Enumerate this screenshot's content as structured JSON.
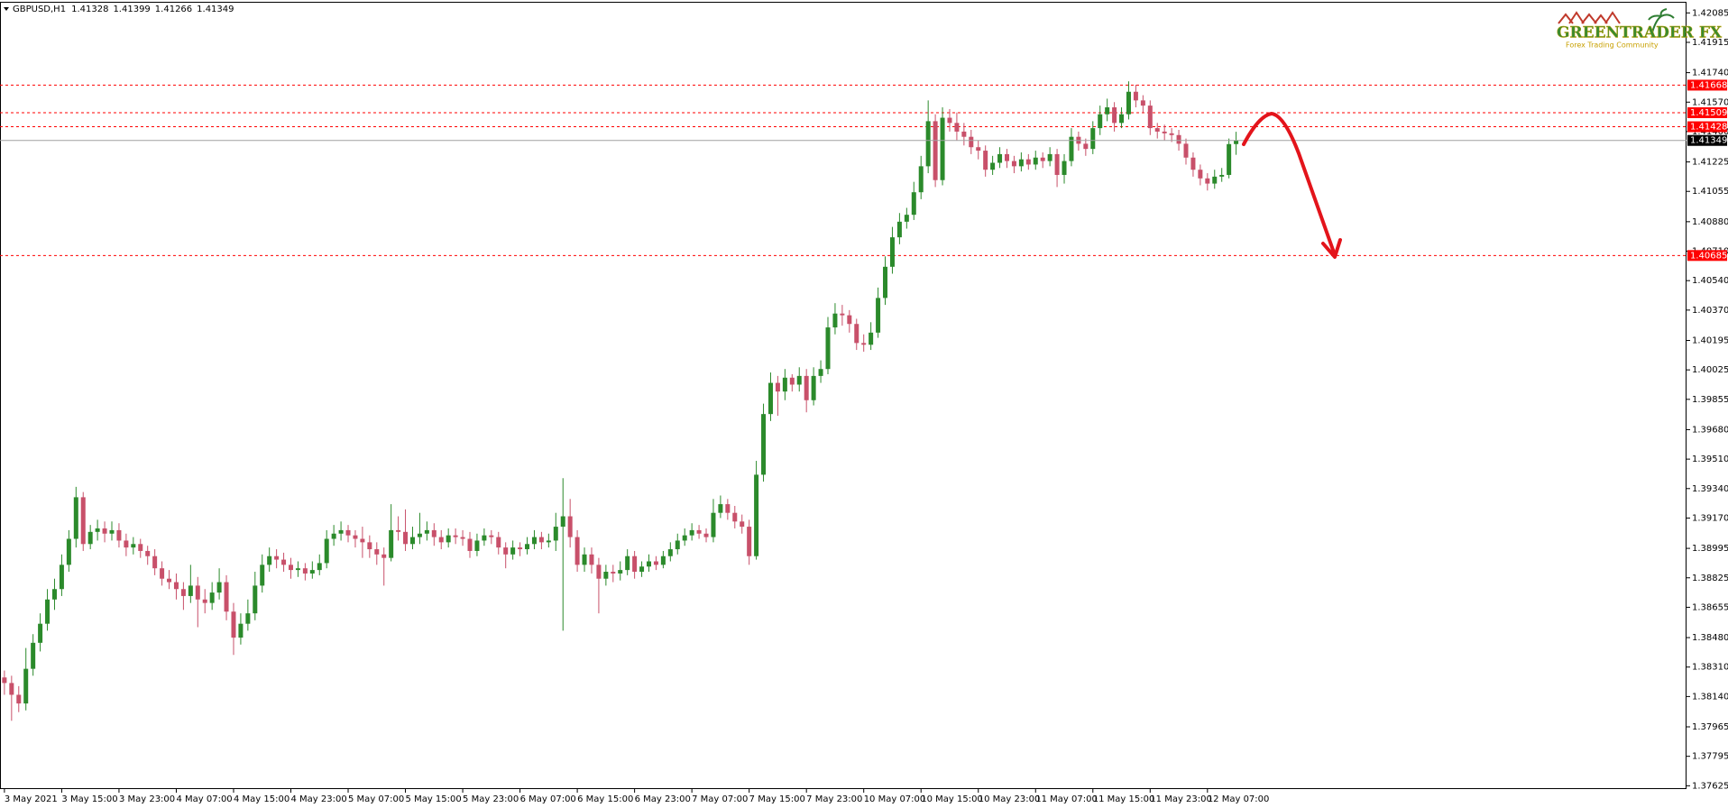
{
  "symbol": "GBPUSD,H1",
  "logo": {
    "title": "GREENTRADER FX",
    "subtitle": "Forex Trading Community"
  },
  "chart_data": {
    "type": "candlestick",
    "up_color": "#2b8a2b",
    "down_color": "#c8506a",
    "level_color": "#ff0000",
    "current_color": "#000000",
    "levels": [
      1.41668,
      1.41509,
      1.41428,
      1.40685
    ],
    "ylim": [
      1.37606,
      1.42149
    ],
    "yticks": [
      1.42085,
      1.41915,
      {
        "value": 1.4174,
        "label": "1.41740"
      },
      {
        "value": 1.4157,
        "label": "1.41570"
      },
      {
        "value": 1.414,
        "label": "1.41400"
      },
      1.41225,
      1.41055,
      {
        "value": 1.4088,
        "label": "1.40880"
      },
      {
        "value": 1.4071,
        "label": "1.40710"
      },
      {
        "value": 1.4054,
        "label": "1.40540"
      },
      {
        "value": 1.4037,
        "label": "1.40370"
      },
      1.40195,
      1.40025,
      1.39855,
      {
        "value": 1.3968,
        "label": "1.39680"
      },
      {
        "value": 1.3951,
        "label": "1.39510"
      },
      {
        "value": 1.3934,
        "label": "1.39340"
      },
      {
        "value": 1.3917,
        "label": "1.39170"
      },
      1.38995,
      1.38825,
      1.38655,
      {
        "value": 1.3848,
        "label": "1.38480"
      },
      {
        "value": 1.3831,
        "label": "1.38310"
      },
      {
        "value": 1.3814,
        "label": "1.38140"
      },
      1.37965,
      1.37795,
      1.37625
    ],
    "xticks": [
      {
        "value": 0,
        "label": "3 May 2021"
      },
      {
        "value": 8,
        "label": "3 May 15:00"
      },
      {
        "value": 16,
        "label": "3 May 23:00"
      },
      {
        "value": 24,
        "label": "4 May 07:00"
      },
      {
        "value": 32,
        "label": "4 May 15:00"
      },
      {
        "value": 40,
        "label": "4 May 23:00"
      },
      {
        "value": 48,
        "label": "5 May 07:00"
      },
      {
        "value": 56,
        "label": "5 May 15:00"
      },
      {
        "value": 64,
        "label": "5 May 23:00"
      },
      {
        "value": 72,
        "label": "6 May 07:00"
      },
      {
        "value": 80,
        "label": "6 May 15:00"
      },
      {
        "value": 88,
        "label": "6 May 23:00"
      },
      {
        "value": 96,
        "label": "7 May 07:00"
      },
      {
        "value": 104,
        "label": "7 May 15:00"
      },
      {
        "value": 112,
        "label": "7 May 23:00"
      },
      {
        "value": 120,
        "label": "10 May 07:00"
      },
      {
        "value": 128,
        "label": "10 May 15:00"
      },
      {
        "value": 136,
        "label": "10 May 23:00"
      },
      {
        "value": 144,
        "label": "11 May 07:00"
      },
      {
        "value": 152,
        "label": "11 May 15:00"
      },
      {
        "value": 160,
        "label": "11 May 23:00"
      },
      {
        "value": 168,
        "label": "12 May 07:00"
      }
    ],
    "ohlc": [
      [
        1.3825,
        1.3829,
        1.3815,
        1.38218
      ],
      [
        1.38218,
        1.3826,
        1.38,
        1.3815
      ],
      [
        1.3815,
        1.382,
        1.3805,
        1.381
      ],
      [
        1.381,
        1.3842,
        1.3806,
        1.383
      ],
      [
        1.383,
        1.385,
        1.3826,
        1.3845
      ],
      [
        1.3845,
        1.3862,
        1.384,
        1.3856
      ],
      [
        1.3856,
        1.3876,
        1.3852,
        1.387
      ],
      [
        1.387,
        1.3882,
        1.3864,
        1.3876
      ],
      [
        1.3876,
        1.3896,
        1.3872,
        1.389
      ],
      [
        1.389,
        1.391,
        1.3886,
        1.3905
      ],
      [
        1.3905,
        1.3935,
        1.39,
        1.3929
      ],
      [
        1.3929,
        1.3932,
        1.3898,
        1.3902
      ],
      [
        1.3902,
        1.3913,
        1.3899,
        1.3909
      ],
      [
        1.3909,
        1.3916,
        1.3904,
        1.3911
      ],
      [
        1.3911,
        1.3915,
        1.3903,
        1.3908
      ],
      [
        1.3908,
        1.3915,
        1.3904,
        1.391
      ],
      [
        1.391,
        1.3914,
        1.39,
        1.3904
      ],
      [
        1.3904,
        1.3908,
        1.3895,
        1.39
      ],
      [
        1.39,
        1.3906,
        1.3896,
        1.3902
      ],
      [
        1.3902,
        1.3905,
        1.3894,
        1.3898
      ],
      [
        1.3898,
        1.3901,
        1.389,
        1.3895
      ],
      [
        1.3895,
        1.3899,
        1.3884,
        1.3888
      ],
      [
        1.3888,
        1.3892,
        1.3878,
        1.3882
      ],
      [
        1.3882,
        1.3887,
        1.3876,
        1.388
      ],
      [
        1.388,
        1.3885,
        1.387,
        1.3876
      ],
      [
        1.3876,
        1.388,
        1.3864,
        1.3872
      ],
      [
        1.3872,
        1.389,
        1.3868,
        1.3878
      ],
      [
        1.3878,
        1.3883,
        1.3854,
        1.387
      ],
      [
        1.387,
        1.3876,
        1.3862,
        1.3868
      ],
      [
        1.3868,
        1.388,
        1.3864,
        1.3874
      ],
      [
        1.3874,
        1.3888,
        1.387,
        1.388
      ],
      [
        1.388,
        1.3884,
        1.3858,
        1.3863
      ],
      [
        1.3863,
        1.3868,
        1.3838,
        1.3848
      ],
      [
        1.3848,
        1.3862,
        1.3844,
        1.3856
      ],
      [
        1.3856,
        1.387,
        1.3852,
        1.3862
      ],
      [
        1.3862,
        1.3886,
        1.3858,
        1.3878
      ],
      [
        1.3878,
        1.3896,
        1.3874,
        1.389
      ],
      [
        1.389,
        1.39,
        1.3886,
        1.3895
      ],
      [
        1.3895,
        1.3899,
        1.3888,
        1.3893
      ],
      [
        1.3893,
        1.3897,
        1.3886,
        1.389
      ],
      [
        1.389,
        1.3894,
        1.3882,
        1.3887
      ],
      [
        1.3887,
        1.3892,
        1.3883,
        1.3888
      ],
      [
        1.3888,
        1.3891,
        1.3881,
        1.3885
      ],
      [
        1.3885,
        1.3892,
        1.3882,
        1.3887
      ],
      [
        1.3887,
        1.3896,
        1.3884,
        1.3891
      ],
      [
        1.3891,
        1.391,
        1.3888,
        1.3905
      ],
      [
        1.3905,
        1.3913,
        1.3901,
        1.3908
      ],
      [
        1.3908,
        1.3915,
        1.3904,
        1.391
      ],
      [
        1.391,
        1.3913,
        1.3903,
        1.3907
      ],
      [
        1.3907,
        1.391,
        1.39,
        1.3905
      ],
      [
        1.3905,
        1.3912,
        1.3894,
        1.3903
      ],
      [
        1.3903,
        1.3907,
        1.3894,
        1.3899
      ],
      [
        1.3899,
        1.3903,
        1.389,
        1.3896
      ],
      [
        1.3896,
        1.39,
        1.3878,
        1.3894
      ],
      [
        1.3894,
        1.3925,
        1.3892,
        1.391
      ],
      [
        1.391,
        1.3918,
        1.3904,
        1.3909
      ],
      [
        1.3909,
        1.3922,
        1.3898,
        1.3902
      ],
      [
        1.3902,
        1.3912,
        1.3899,
        1.3906
      ],
      [
        1.3906,
        1.392,
        1.3902,
        1.3908
      ],
      [
        1.3908,
        1.3915,
        1.3904,
        1.391
      ],
      [
        1.391,
        1.3914,
        1.3901,
        1.3906
      ],
      [
        1.3906,
        1.391,
        1.3899,
        1.3903
      ],
      [
        1.3903,
        1.3911,
        1.39,
        1.3907
      ],
      [
        1.3907,
        1.3911,
        1.3902,
        1.3906
      ],
      [
        1.3906,
        1.391,
        1.3901,
        1.3905
      ],
      [
        1.3905,
        1.3909,
        1.3894,
        1.3898
      ],
      [
        1.3898,
        1.3908,
        1.3895,
        1.3904
      ],
      [
        1.3904,
        1.3911,
        1.3901,
        1.3907
      ],
      [
        1.3907,
        1.391,
        1.3902,
        1.3906
      ],
      [
        1.3906,
        1.3909,
        1.3896,
        1.39
      ],
      [
        1.39,
        1.3903,
        1.3888,
        1.3896
      ],
      [
        1.3896,
        1.3904,
        1.3893,
        1.39
      ],
      [
        1.39,
        1.3903,
        1.3895,
        1.3899
      ],
      [
        1.3899,
        1.3906,
        1.3896,
        1.3902
      ],
      [
        1.3902,
        1.391,
        1.3899,
        1.3906
      ],
      [
        1.3906,
        1.3909,
        1.3899,
        1.3903
      ],
      [
        1.3903,
        1.3908,
        1.39,
        1.3904
      ],
      [
        1.3904,
        1.392,
        1.3898,
        1.3912
      ],
      [
        1.3912,
        1.394,
        1.3852,
        1.3918
      ],
      [
        1.3918,
        1.3928,
        1.39,
        1.3906
      ],
      [
        1.3906,
        1.391,
        1.3886,
        1.389
      ],
      [
        1.389,
        1.39,
        1.3886,
        1.3896
      ],
      [
        1.3896,
        1.39,
        1.3885,
        1.389
      ],
      [
        1.389,
        1.3894,
        1.3862,
        1.3882
      ],
      [
        1.3882,
        1.389,
        1.3878,
        1.3886
      ],
      [
        1.3886,
        1.389,
        1.388,
        1.3885
      ],
      [
        1.3885,
        1.3892,
        1.3881,
        1.3887
      ],
      [
        1.3887,
        1.3899,
        1.3884,
        1.3895
      ],
      [
        1.3895,
        1.3898,
        1.3882,
        1.3886
      ],
      [
        1.3886,
        1.3892,
        1.3883,
        1.3889
      ],
      [
        1.3889,
        1.3896,
        1.3886,
        1.3892
      ],
      [
        1.3892,
        1.3895,
        1.3887,
        1.389
      ],
      [
        1.389,
        1.3898,
        1.3888,
        1.3895
      ],
      [
        1.3895,
        1.3903,
        1.3892,
        1.3899
      ],
      [
        1.3899,
        1.3908,
        1.3896,
        1.3904
      ],
      [
        1.3904,
        1.3911,
        1.3901,
        1.3907
      ],
      [
        1.3907,
        1.3914,
        1.3904,
        1.391
      ],
      [
        1.391,
        1.3913,
        1.3905,
        1.3908
      ],
      [
        1.3908,
        1.3911,
        1.3903,
        1.3906
      ],
      [
        1.3906,
        1.3928,
        1.3903,
        1.392
      ],
      [
        1.392,
        1.393,
        1.3917,
        1.3925
      ],
      [
        1.3925,
        1.3928,
        1.3916,
        1.392
      ],
      [
        1.392,
        1.3924,
        1.3911,
        1.3915
      ],
      [
        1.3915,
        1.3919,
        1.3908,
        1.3912
      ],
      [
        1.3912,
        1.3916,
        1.389,
        1.3895
      ],
      [
        1.3895,
        1.395,
        1.3893,
        1.3942
      ],
      [
        1.3942,
        1.3983,
        1.3938,
        1.3977
      ],
      [
        1.3977,
        1.4001,
        1.3973,
        1.3995
      ],
      [
        1.3995,
        1.3999,
        1.3976,
        1.399
      ],
      [
        1.399,
        1.4003,
        1.3985,
        1.3998
      ],
      [
        1.3998,
        1.4,
        1.399,
        1.3994
      ],
      [
        1.3994,
        1.4004,
        1.399,
        1.3999
      ],
      [
        1.3999,
        1.4003,
        1.3978,
        1.3985
      ],
      [
        1.3985,
        1.4004,
        1.3982,
        1.3999
      ],
      [
        1.3999,
        1.4008,
        1.3995,
        1.4003
      ],
      [
        1.4003,
        1.4033,
        1.4,
        1.4027
      ],
      [
        1.4027,
        1.4041,
        1.4023,
        1.4035
      ],
      [
        1.4035,
        1.404,
        1.4028,
        1.4034
      ],
      [
        1.4034,
        1.4037,
        1.4024,
        1.4029
      ],
      [
        1.4029,
        1.4032,
        1.4014,
        1.4018
      ],
      [
        1.4018,
        1.4023,
        1.4013,
        1.4017
      ],
      [
        1.4017,
        1.403,
        1.4014,
        1.4024
      ],
      [
        1.4024,
        1.405,
        1.4021,
        1.4044
      ],
      [
        1.4044,
        1.4068,
        1.404,
        1.4062
      ],
      [
        1.4062,
        1.4085,
        1.4058,
        1.4079
      ],
      [
        1.4079,
        1.4093,
        1.4075,
        1.4088
      ],
      [
        1.4088,
        1.4096,
        1.4084,
        1.4092
      ],
      [
        1.4092,
        1.4111,
        1.4089,
        1.4105
      ],
      [
        1.4105,
        1.4126,
        1.4101,
        1.412
      ],
      [
        1.412,
        1.4158,
        1.4116,
        1.4146
      ],
      [
        1.4146,
        1.415,
        1.4108,
        1.4112
      ],
      [
        1.4112,
        1.4154,
        1.4109,
        1.4148
      ],
      [
        1.4148,
        1.4153,
        1.414,
        1.4145
      ],
      [
        1.4145,
        1.4151,
        1.4135,
        1.414
      ],
      [
        1.414,
        1.4145,
        1.4132,
        1.4137
      ],
      [
        1.4137,
        1.4141,
        1.4127,
        1.4131
      ],
      [
        1.4131,
        1.4135,
        1.4124,
        1.4129
      ],
      [
        1.4129,
        1.4132,
        1.4114,
        1.4118
      ],
      [
        1.4118,
        1.4126,
        1.4115,
        1.4122
      ],
      [
        1.4122,
        1.4131,
        1.4119,
        1.4127
      ],
      [
        1.4127,
        1.413,
        1.4119,
        1.4123
      ],
      [
        1.4123,
        1.4126,
        1.4116,
        1.412
      ],
      [
        1.412,
        1.4128,
        1.4117,
        1.4124
      ],
      [
        1.4124,
        1.4127,
        1.4118,
        1.4121
      ],
      [
        1.4121,
        1.4129,
        1.4118,
        1.4125
      ],
      [
        1.4125,
        1.4128,
        1.4119,
        1.4123
      ],
      [
        1.4123,
        1.4131,
        1.412,
        1.4127
      ],
      [
        1.4127,
        1.413,
        1.4108,
        1.4115
      ],
      [
        1.4115,
        1.4127,
        1.411,
        1.4123
      ],
      [
        1.4123,
        1.4142,
        1.412,
        1.4137
      ],
      [
        1.4137,
        1.414,
        1.4129,
        1.4133
      ],
      [
        1.4133,
        1.4136,
        1.4126,
        1.413
      ],
      [
        1.413,
        1.4146,
        1.4127,
        1.4142
      ],
      [
        1.4142,
        1.4155,
        1.4138,
        1.415
      ],
      [
        1.415,
        1.4159,
        1.4146,
        1.4154
      ],
      [
        1.4154,
        1.4157,
        1.414,
        1.4145
      ],
      [
        1.4145,
        1.4154,
        1.4142,
        1.415
      ],
      [
        1.415,
        1.4169,
        1.4147,
        1.4163
      ],
      [
        1.4163,
        1.4167,
        1.4154,
        1.4158
      ],
      [
        1.4158,
        1.4161,
        1.4151,
        1.4155
      ],
      [
        1.4155,
        1.4158,
        1.4138,
        1.4142
      ],
      [
        1.4142,
        1.4145,
        1.4136,
        1.414
      ],
      [
        1.414,
        1.4144,
        1.4135,
        1.4139
      ],
      [
        1.4139,
        1.4142,
        1.4134,
        1.4138
      ],
      [
        1.4138,
        1.4141,
        1.4129,
        1.4133
      ],
      [
        1.4133,
        1.4136,
        1.4121,
        1.4125
      ],
      [
        1.4125,
        1.4128,
        1.4114,
        1.4118
      ],
      [
        1.4118,
        1.4121,
        1.4109,
        1.4113
      ],
      [
        1.4113,
        1.4116,
        1.4106,
        1.411
      ],
      [
        1.411,
        1.4118,
        1.4107,
        1.4114
      ],
      [
        1.4114,
        1.4119,
        1.4111,
        1.4115
      ],
      [
        1.4115,
        1.4136,
        1.4113,
        1.41328
      ],
      [
        1.41328,
        1.41399,
        1.41266,
        1.41349
      ]
    ]
  }
}
